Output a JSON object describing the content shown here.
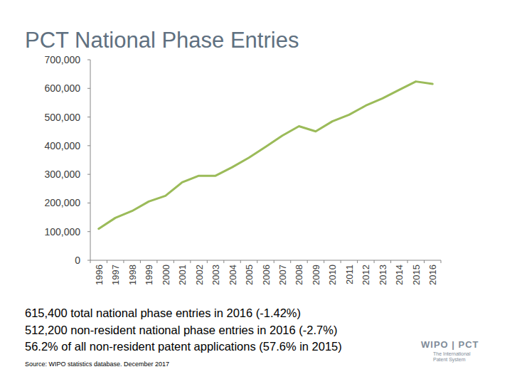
{
  "chart_data": {
    "type": "line",
    "title": "PCT National Phase Entries",
    "categories": [
      "1996",
      "1997",
      "1998",
      "1999",
      "2000",
      "2001",
      "2002",
      "2003",
      "2004",
      "2005",
      "2006",
      "2007",
      "2008",
      "2009",
      "2010",
      "2011",
      "2012",
      "2013",
      "2014",
      "2015",
      "2016"
    ],
    "values": [
      110000,
      148000,
      172000,
      205000,
      225000,
      272000,
      295000,
      295000,
      325000,
      358000,
      396000,
      435000,
      468000,
      450000,
      485000,
      508000,
      540000,
      565000,
      595000,
      624000,
      615400
    ],
    "color": "#9bbb59",
    "ylim": [
      0,
      700000
    ],
    "yticks": [
      0,
      {
        "value": 100000,
        "label": "100,000"
      },
      {
        "value": 200000,
        "label": "200,000"
      },
      {
        "value": 300000,
        "label": "300,000"
      },
      {
        "value": 400000,
        "label": "400,000"
      },
      {
        "value": 500000,
        "label": "500,000"
      },
      {
        "value": 600000,
        "label": "600,000"
      },
      {
        "value": 700000,
        "label": "700,000"
      }
    ],
    "grid": false,
    "annotations": [
      "615,400 total national phase entries in 2016 (-1.42%)",
      "512,200 non-resident national phase entries in 2016 (-2.7%)",
      "56.2% of all non-resident patent applications (57.6% in 2015)"
    ],
    "source": "Source: WIPO statistics database. December 2017",
    "logo": [
      "WIPO | PCT",
      "The International",
      "Patent System"
    ]
  }
}
